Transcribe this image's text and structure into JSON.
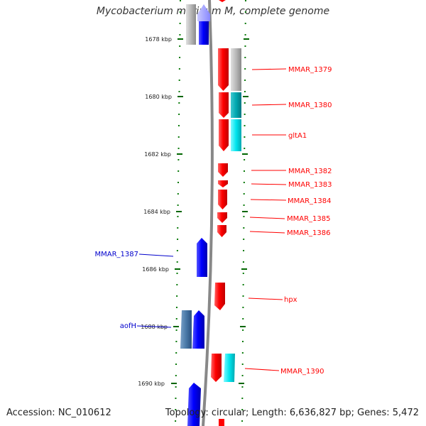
{
  "title": "Mycobacterium marinum M, complete genome",
  "footer": {
    "accession": "Accession: NC_010612",
    "summary": "Topology: circular; Length: 6,636,827 bp; Genes: 5,472"
  },
  "ruler": {
    "ticks": [
      "1678 kbp",
      "1680 kbp",
      "1682 kbp",
      "1684 kbp",
      "1686 kbp",
      "1688 kbp",
      "1690 kbp"
    ]
  },
  "colors": {
    "reverse_strand": "#ff0000",
    "forward_strand": "#0000ff",
    "tick": "#006600",
    "backbone": "#888888",
    "rna_gray": "#b0b0b0",
    "cyan": "#00e5ee",
    "teal": "#00b0b8",
    "steel": "#4a7aa8"
  },
  "genes": {
    "reverse": [
      "MMAR_1379",
      "MMAR_1380",
      "gltA1",
      "MMAR_1382",
      "MMAR_1383",
      "MMAR_1384",
      "MMAR_1385",
      "MMAR_1386",
      "hpx",
      "MMAR_1390"
    ],
    "forward": [
      "MMAR_1387",
      "aofH"
    ]
  }
}
